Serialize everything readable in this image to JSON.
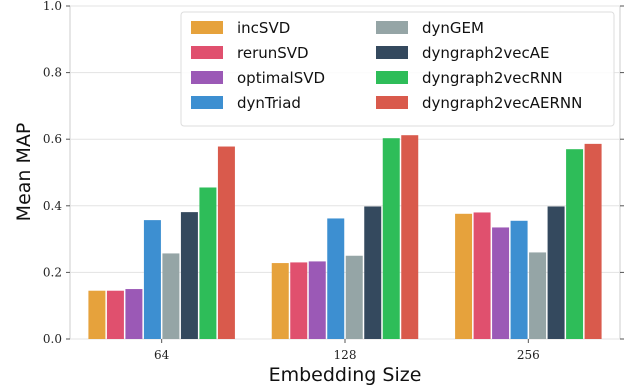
{
  "chart_data": {
    "type": "bar",
    "title": "",
    "xlabel": "Embedding Size",
    "ylabel": "Mean MAP",
    "categories": [
      "64",
      "128",
      "256"
    ],
    "ylim": [
      0.0,
      1.0
    ],
    "yticks": [
      "0.0",
      "0.2",
      "0.4",
      "0.6",
      "0.8",
      "1.0"
    ],
    "grid": true,
    "legend_placement": "top-right",
    "series": [
      {
        "name": "incSVD",
        "color": "#e6a23c",
        "values": [
          0.145,
          0.228,
          0.376
        ]
      },
      {
        "name": "rerunSVD",
        "color": "#e0506e",
        "values": [
          0.145,
          0.23,
          0.38
        ]
      },
      {
        "name": "optimalSVD",
        "color": "#9b59b6",
        "values": [
          0.15,
          0.233,
          0.335
        ]
      },
      {
        "name": "dynTriad",
        "color": "#3d8fd1",
        "values": [
          0.357,
          0.362,
          0.355
        ]
      },
      {
        "name": "dynGEM",
        "color": "#95a5a6",
        "values": [
          0.257,
          0.25,
          0.26
        ]
      },
      {
        "name": "dyngraph2vecAE",
        "color": "#34495e",
        "values": [
          0.381,
          0.398,
          0.398
        ]
      },
      {
        "name": "dyngraph2vecRNN",
        "color": "#2ebd59",
        "values": [
          0.455,
          0.603,
          0.57
        ]
      },
      {
        "name": "dyngraph2vecAERNN",
        "color": "#d95a4c",
        "values": [
          0.578,
          0.612,
          0.586
        ]
      }
    ]
  }
}
